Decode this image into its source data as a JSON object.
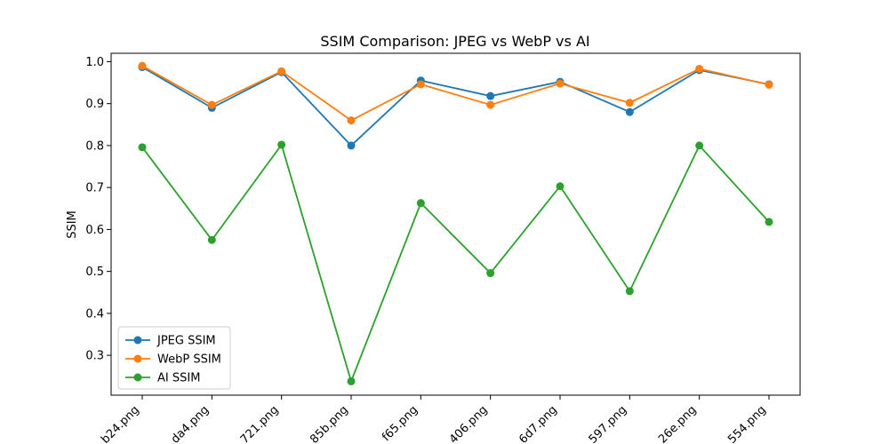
{
  "chart_data": {
    "type": "line",
    "title": "SSIM Comparison: JPEG vs WebP vs AI",
    "xlabel": "",
    "ylabel": "SSIM",
    "ylim": [
      0.205,
      1.02
    ],
    "yticks": [
      0.3,
      0.4,
      0.5,
      0.6,
      0.7,
      0.8,
      0.9,
      1.0
    ],
    "ytick_labels": [
      "0.3",
      "0.4",
      "0.5",
      "0.6",
      "0.7",
      "0.8",
      "0.9",
      "1.0"
    ],
    "categories": [
      "b24.png",
      "da4.png",
      "721.png",
      "85b.png",
      "f65.png",
      "406.png",
      "6d7.png",
      "597.png",
      "26e.png",
      "554.png"
    ],
    "grid": false,
    "legend_position": "lower-left",
    "series": [
      {
        "name": "JPEG SSIM",
        "color": "#1f77b4",
        "values": [
          0.987,
          0.89,
          0.975,
          0.8,
          0.955,
          0.918,
          0.952,
          0.88,
          0.98,
          0.946
        ]
      },
      {
        "name": "WebP SSIM",
        "color": "#ff7f0e",
        "values": [
          0.99,
          0.897,
          0.977,
          0.86,
          0.946,
          0.897,
          0.948,
          0.902,
          0.983,
          0.945
        ]
      },
      {
        "name": "AI SSIM",
        "color": "#2ca02c",
        "values": [
          0.796,
          0.575,
          0.802,
          0.238,
          0.663,
          0.496,
          0.703,
          0.453,
          0.8,
          0.618
        ]
      }
    ]
  }
}
